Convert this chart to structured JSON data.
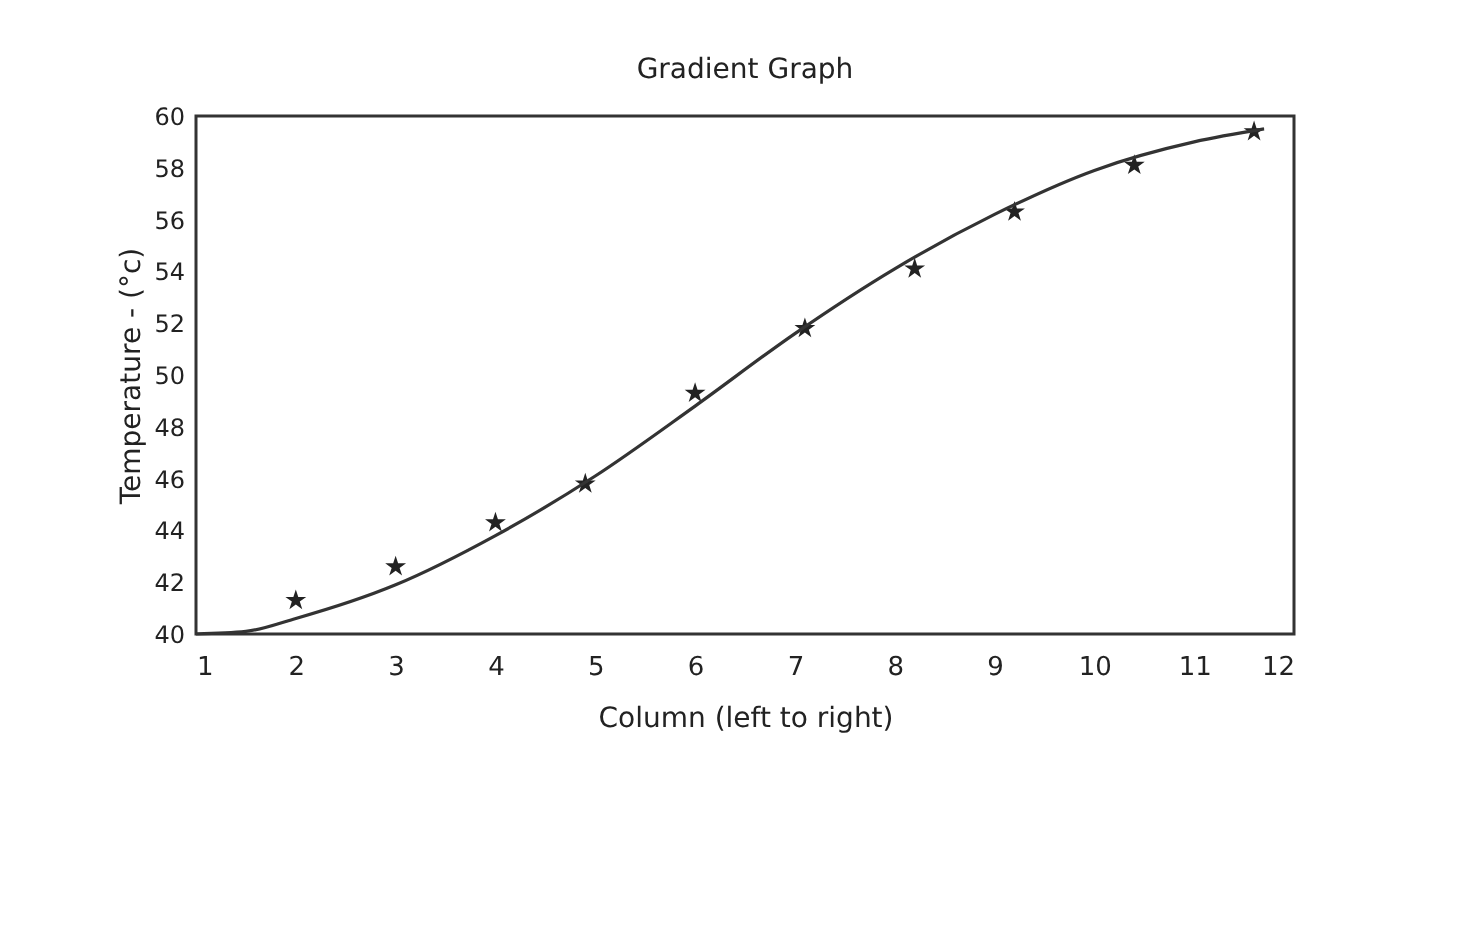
{
  "chart_data": {
    "type": "scatter",
    "title": "Gradient Graph",
    "xlabel": "Column (left to right)",
    "ylabel": "Temperature - (°c)",
    "xlim": [
      1,
      12
    ],
    "xticks": [
      1,
      2,
      3,
      4,
      5,
      6,
      7,
      8,
      9,
      10,
      11,
      12
    ],
    "ylim": [
      40,
      60
    ],
    "yticks": [
      40,
      42,
      44,
      46,
      48,
      50,
      52,
      54,
      56,
      58,
      60
    ],
    "grid": false,
    "series": [
      {
        "marker": "star",
        "color": "#222222",
        "x": [
          2,
          3,
          4,
          4.9,
          6,
          7.1,
          8.2,
          9.2,
          10.4,
          11.6
        ],
        "values": [
          41.3,
          42.6,
          44.3,
          45.8,
          49.3,
          51.8,
          54.1,
          56.3,
          58.1,
          59.4
        ]
      },
      {
        "type": "line",
        "marker": "none",
        "line_style": "solid",
        "color": "#333333",
        "x": [
          1,
          1.5,
          2,
          3,
          4,
          5,
          6,
          7,
          8,
          9,
          10,
          11,
          11.7
        ],
        "values": [
          40,
          40.1,
          40.6,
          41.9,
          43.8,
          46.1,
          48.8,
          51.6,
          54.1,
          56.2,
          57.9,
          59.0,
          59.5
        ]
      }
    ]
  }
}
